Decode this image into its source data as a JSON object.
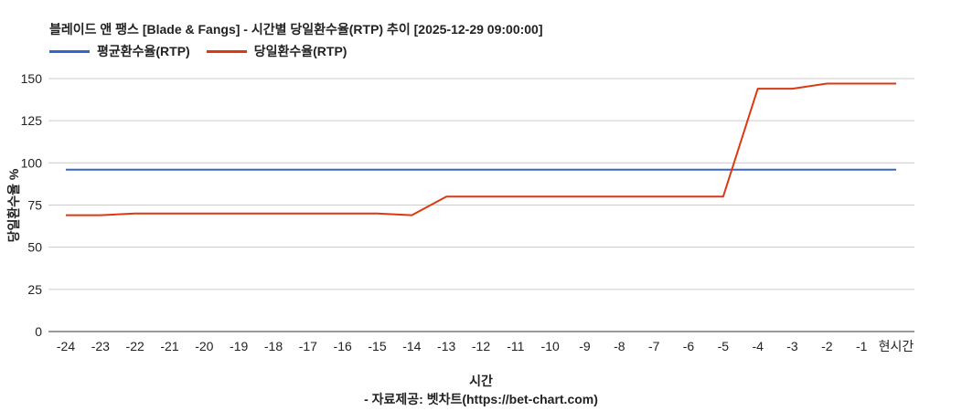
{
  "chart_data": {
    "type": "line",
    "title": "블레이드 앤 팽스 [Blade & Fangs] - 시간별 당일환수율(RTP) 추이 [2025-12-29 09:00:00]",
    "xlabel": "시간",
    "ylabel": "당일환수율 %",
    "credit": "- 자료제공: 벳차트(https://bet-chart.com)",
    "ylim": [
      0,
      150
    ],
    "yticks": [
      0,
      25,
      50,
      75,
      100,
      125,
      150
    ],
    "grid": true,
    "legend_position": "top-left",
    "categories": [
      "-24",
      "-23",
      "-22",
      "-21",
      "-20",
      "-19",
      "-18",
      "-17",
      "-16",
      "-15",
      "-14",
      "-13",
      "-12",
      "-11",
      "-10",
      "-9",
      "-8",
      "-7",
      "-6",
      "-5",
      "-4",
      "-3",
      "-2",
      "-1",
      "현시간"
    ],
    "series": [
      {
        "name": "평균환수율(RTP)",
        "color": "#3366cc",
        "values": [
          96,
          96,
          96,
          96,
          96,
          96,
          96,
          96,
          96,
          96,
          96,
          96,
          96,
          96,
          96,
          96,
          96,
          96,
          96,
          96,
          96,
          96,
          96,
          96,
          96
        ]
      },
      {
        "name": "당일환수율(RTP)",
        "color": "#dc3912",
        "values": [
          69,
          69,
          70,
          70,
          70,
          70,
          70,
          70,
          70,
          70,
          69,
          80,
          80,
          80,
          80,
          80,
          80,
          80,
          80,
          80,
          144,
          144,
          147,
          147,
          147
        ]
      }
    ]
  },
  "legend": {
    "avg_label": "평균환수율(RTP)",
    "daily_label": "당일환수율(RTP)"
  }
}
